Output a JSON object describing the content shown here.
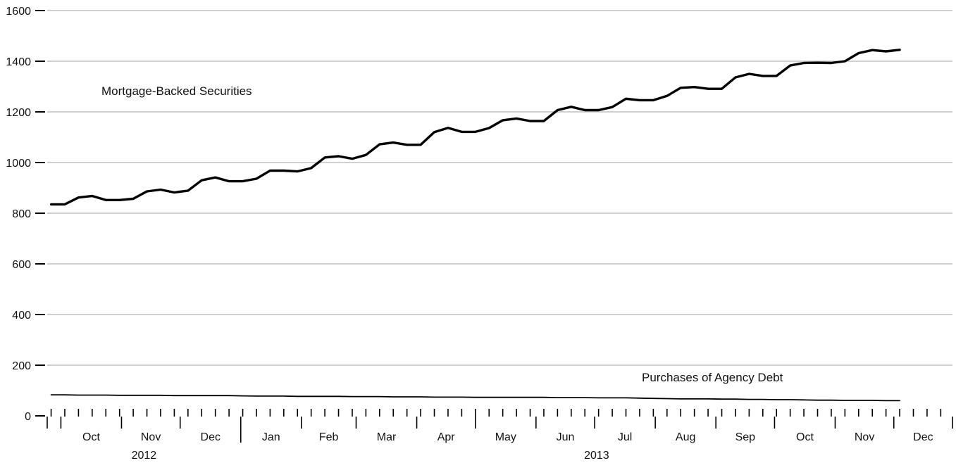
{
  "chart_data": {
    "type": "line",
    "title": "",
    "xlabel": "",
    "ylabel": "",
    "ylim": [
      0,
      1600
    ],
    "yticks": [
      0,
      200,
      400,
      600,
      800,
      1000,
      1200,
      1400,
      1600
    ],
    "grid": true,
    "x_start": "2012-09-26",
    "x_step_days": 7,
    "months": [
      "Oct",
      "Nov",
      "Dec",
      "Jan",
      "Feb",
      "Mar",
      "Apr",
      "May",
      "Jun",
      "Jul",
      "Aug",
      "Sep",
      "Oct",
      "Nov",
      "Dec"
    ],
    "years": [
      "2012",
      "2013"
    ],
    "series": [
      {
        "name": "Mortgage-Backed Securities",
        "values": [
          835,
          835,
          862,
          868,
          852,
          852,
          857,
          886,
          893,
          882,
          889,
          930,
          941,
          926,
          926,
          936,
          968,
          968,
          965,
          978,
          1020,
          1025,
          1015,
          1030,
          1072,
          1079,
          1070,
          1070,
          1120,
          1137,
          1121,
          1121,
          1136,
          1167,
          1174,
          1164,
          1164,
          1207,
          1220,
          1207,
          1207,
          1219,
          1252,
          1246,
          1246,
          1263,
          1295,
          1298,
          1291,
          1291,
          1336,
          1350,
          1342,
          1342,
          1383,
          1393,
          1394,
          1393,
          1400,
          1432,
          1444,
          1439,
          1445
        ]
      },
      {
        "name": "Purchases of Agency Debt",
        "values": [
          83,
          83,
          82,
          82,
          82,
          81,
          81,
          81,
          81,
          80,
          80,
          80,
          80,
          80,
          79,
          78,
          78,
          78,
          77,
          77,
          77,
          77,
          76,
          76,
          76,
          75,
          75,
          75,
          74,
          74,
          74,
          73,
          73,
          73,
          73,
          73,
          73,
          72,
          72,
          72,
          71,
          71,
          71,
          70,
          69,
          68,
          67,
          67,
          67,
          66,
          66,
          65,
          65,
          64,
          64,
          63,
          62,
          62,
          61,
          61,
          61,
          60,
          60
        ]
      }
    ]
  }
}
